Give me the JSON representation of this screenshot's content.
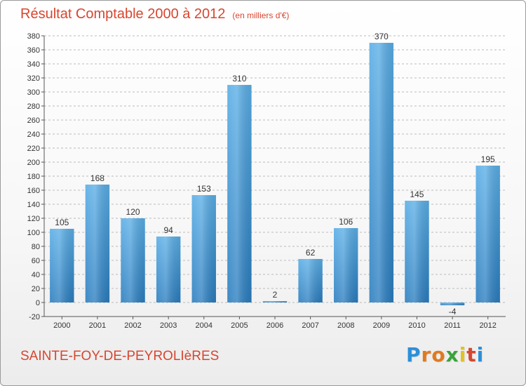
{
  "title": "Résultat Comptable 2000 à 2012",
  "subtitle": "(en milliers d'€)",
  "footer": {
    "city": "SAINTE-FOY-DE-PEYROLIèRES",
    "brand": "Proxiti"
  },
  "colors": {
    "accent": "#d7462f",
    "bar_top": "#5aaee6",
    "bar_bottom": "#2a7dbf",
    "grid": "#bbbbbb",
    "brand_letters": [
      "#2b8fd9",
      "#e07a1f",
      "#e07a1f",
      "#3aa33a",
      "#e0c21f",
      "#d7462f",
      "#2b8fd9"
    ]
  },
  "chart_data": {
    "type": "bar",
    "title": "Résultat Comptable 2000 à 2012",
    "subtitle": "(en milliers d'€)",
    "categories": [
      "2000",
      "2001",
      "2002",
      "2003",
      "2004",
      "2005",
      "2006",
      "2007",
      "2008",
      "2009",
      "2010",
      "2011",
      "2012"
    ],
    "values": [
      105,
      168,
      120,
      94,
      153,
      310,
      2,
      62,
      106,
      370,
      145,
      -4,
      195
    ],
    "ylim": [
      -20,
      380
    ],
    "yticks": [
      -20,
      0,
      20,
      40,
      60,
      80,
      100,
      120,
      140,
      160,
      180,
      200,
      220,
      240,
      260,
      280,
      300,
      320,
      340,
      360,
      380
    ],
    "grid": true,
    "grid_style": "dashed-horizontal",
    "legend": "none",
    "xlabel": "",
    "ylabel": ""
  }
}
